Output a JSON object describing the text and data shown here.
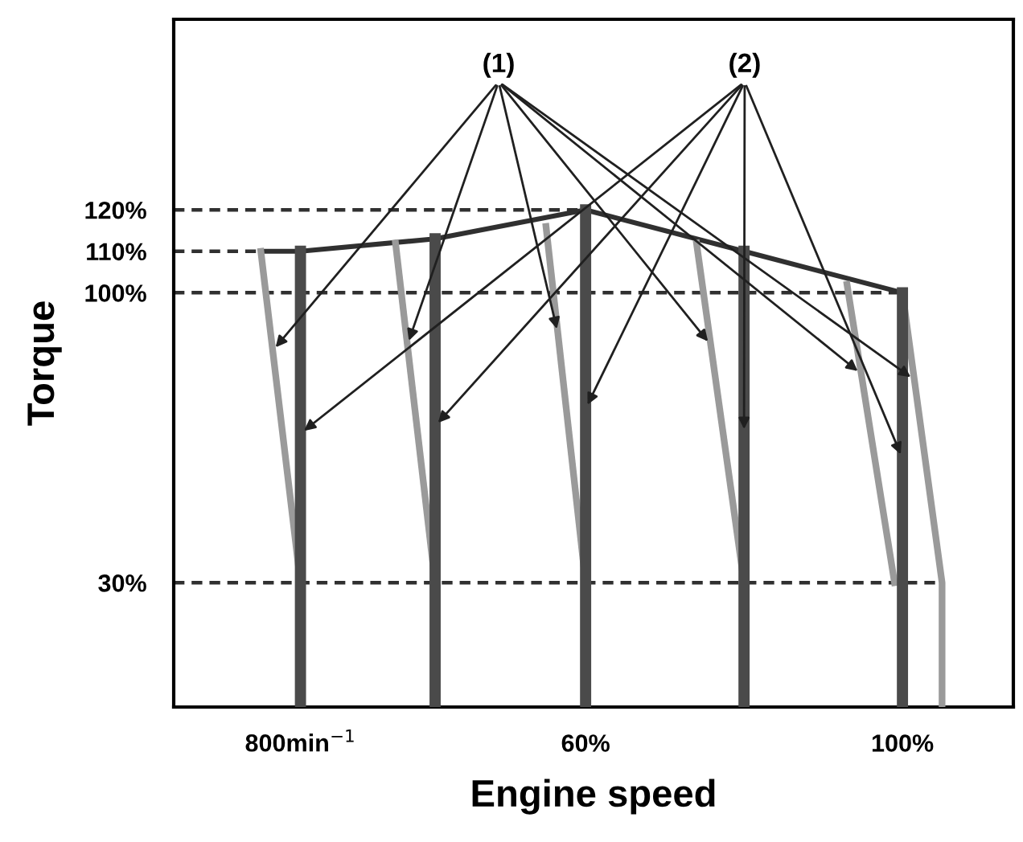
{
  "chart_data": {
    "type": "line",
    "xlabel": "Engine speed",
    "ylabel": "Torque",
    "xlim": [
      8,
      114
    ],
    "ylim": [
      0,
      166
    ],
    "xticks": [
      {
        "value": 24,
        "label": "800min$^{−1}$"
      },
      {
        "value": 60,
        "label": "60%"
      },
      {
        "value": 100,
        "label": "100%"
      }
    ],
    "yticks": [
      {
        "value": 30,
        "label": "30%"
      },
      {
        "value": 100,
        "label": "100%"
      },
      {
        "value": 110,
        "label": "110%"
      },
      {
        "value": 120,
        "label": "120%"
      }
    ],
    "grid": false,
    "legend": false,
    "marker": "none",
    "series": [
      {
        "color": "#303030",
        "line_style": "solid",
        "x": [
          19,
          24,
          41,
          60,
          80,
          100
        ],
        "values": [
          110,
          110,
          113,
          120,
          110,
          100
        ]
      },
      {
        "color": "#303030",
        "line_style": "dashed",
        "x": [
          8,
          60
        ],
        "values": [
          120,
          120
        ]
      },
      {
        "color": "#303030",
        "line_style": "dashed",
        "x": [
          8,
          19
        ],
        "values": [
          110,
          110
        ]
      },
      {
        "color": "#303030",
        "line_style": "dashed",
        "x": [
          8,
          100
        ],
        "values": [
          100,
          100
        ]
      },
      {
        "color": "#303030",
        "line_style": "dashed",
        "x": [
          8,
          105
        ],
        "values": [
          30,
          30
        ]
      },
      {
        "color": "#9a9a9a",
        "line_style": "solid",
        "x": [
          19,
          24
        ],
        "values": [
          110,
          30
        ]
      },
      {
        "color": "#9a9a9a",
        "line_style": "solid",
        "x": [
          36,
          41
        ],
        "values": [
          112,
          30
        ]
      },
      {
        "color": "#9a9a9a",
        "line_style": "solid",
        "x": [
          55,
          60
        ],
        "values": [
          116,
          30
        ]
      },
      {
        "color": "#9a9a9a",
        "line_style": "solid",
        "x": [
          74,
          80
        ],
        "values": [
          112,
          30
        ]
      },
      {
        "color": "#9a9a9a",
        "line_style": "solid",
        "x": [
          93,
          99
        ],
        "values": [
          102,
          30
        ]
      },
      {
        "color": "#9a9a9a",
        "line_style": "solid",
        "x": [
          100,
          105,
          105
        ],
        "values": [
          100,
          30,
          0
        ]
      },
      {
        "color": "#4a4a4a",
        "line_style": "solid",
        "x": [
          24,
          24
        ],
        "values": [
          0,
          110
        ]
      },
      {
        "color": "#4a4a4a",
        "line_style": "solid",
        "x": [
          41,
          41
        ],
        "values": [
          0,
          113
        ]
      },
      {
        "color": "#4a4a4a",
        "line_style": "solid",
        "x": [
          60,
          60
        ],
        "values": [
          0,
          120
        ]
      },
      {
        "color": "#4a4a4a",
        "line_style": "solid",
        "x": [
          80,
          80
        ],
        "values": [
          0,
          110
        ]
      },
      {
        "color": "#4a4a4a",
        "line_style": "solid",
        "x": [
          100,
          100
        ],
        "values": [
          0,
          100
        ]
      }
    ],
    "annotations": [
      {
        "text": "(1)",
        "x": 20.5,
        "y": 86
      },
      {
        "text": "(2)",
        "x": 24,
        "y": 66
      }
    ]
  }
}
